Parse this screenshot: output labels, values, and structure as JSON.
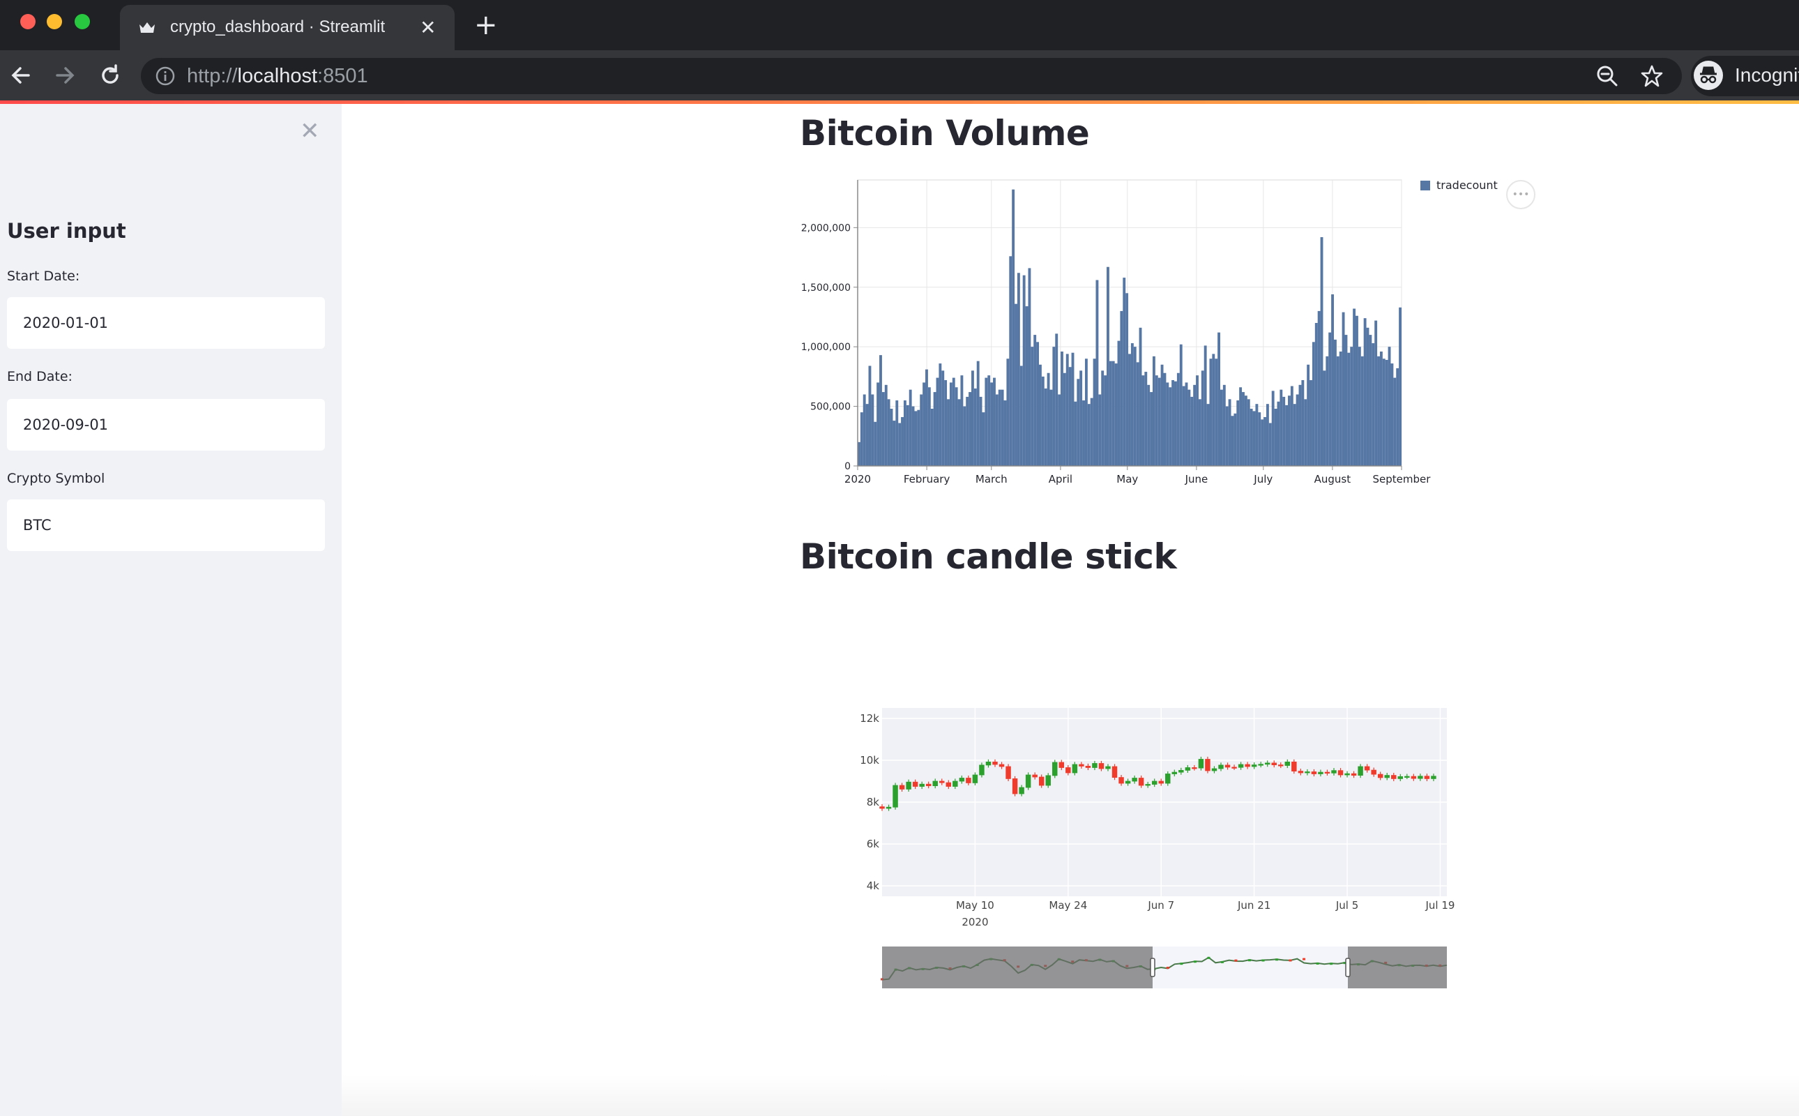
{
  "browser": {
    "tab_title": "crypto_dashboard · Streamlit",
    "url_scheme": "http://",
    "url_host": "localhost",
    "url_port": ":8501",
    "profile_label": "Incognito"
  },
  "sidebar": {
    "heading": "User input",
    "fields": [
      {
        "label": "Start Date:",
        "value": "2020-01-01"
      },
      {
        "label": "End Date:",
        "value": "2020-09-01"
      },
      {
        "label": "Crypto Symbol",
        "value": "BTC"
      }
    ]
  },
  "main": {
    "volume_title": "Bitcoin Volume",
    "candle_title": "Bitcoin candle stick"
  },
  "colors": {
    "bar": "#5677a4",
    "up": "#2ca02c",
    "down": "#ef3b2c",
    "accent": "#ff4b4b"
  },
  "chart_data": [
    {
      "type": "bar",
      "series_name": "tradecount",
      "x_tick_labels": [
        "2020",
        "February",
        "March",
        "April",
        "May",
        "June",
        "July",
        "August",
        "September"
      ],
      "y_tick_labels": [
        "0",
        "500,000",
        "1,000,000",
        "1,500,000",
        "2,000,000"
      ],
      "ylim": [
        0,
        2400000
      ],
      "x_range": [
        "2020-01-01",
        "2020-09-01"
      ],
      "values": [
        200000,
        450000,
        600000,
        520000,
        840000,
        600000,
        370000,
        700000,
        930000,
        620000,
        680000,
        560000,
        480000,
        380000,
        550000,
        360000,
        410000,
        550000,
        510000,
        640000,
        500000,
        460000,
        470000,
        600000,
        700000,
        810000,
        660000,
        480000,
        620000,
        740000,
        860000,
        800000,
        720000,
        560000,
        700000,
        740000,
        660000,
        560000,
        760000,
        500000,
        580000,
        620000,
        800000,
        650000,
        880000,
        580000,
        450000,
        740000,
        760000,
        700000,
        740000,
        600000,
        640000,
        640000,
        550000,
        900000,
        1760000,
        2320000,
        1360000,
        1620000,
        840000,
        1600000,
        1340000,
        1660000,
        1000000,
        1100000,
        1040000,
        850000,
        750000,
        650000,
        780000,
        640000,
        1000000,
        1110000,
        600000,
        960000,
        780000,
        940000,
        830000,
        950000,
        540000,
        730000,
        800000,
        550000,
        900000,
        520000,
        570000,
        900000,
        1560000,
        600000,
        800000,
        760000,
        1670000,
        880000,
        880000,
        860000,
        1050000,
        1300000,
        1580000,
        1450000,
        940000,
        1030000,
        1000000,
        870000,
        1160000,
        760000,
        790000,
        680000,
        620000,
        920000,
        760000,
        740000,
        850000,
        780000,
        700000,
        660000,
        720000,
        710000,
        780000,
        1020000,
        670000,
        700000,
        640000,
        580000,
        680000,
        760000,
        560000,
        800000,
        1010000,
        520000,
        900000,
        940000,
        900000,
        1120000,
        640000,
        680000,
        500000,
        560000,
        420000,
        440000,
        550000,
        660000,
        620000,
        590000,
        560000,
        480000,
        460000,
        520000,
        450000,
        390000,
        410000,
        520000,
        360000,
        630000,
        480000,
        540000,
        640000,
        580000,
        510000,
        590000,
        670000,
        520000,
        600000,
        680000,
        720000,
        560000,
        850000,
        720000,
        1040000,
        1200000,
        1300000,
        1920000,
        800000,
        920000,
        1120000,
        1440000,
        1060000,
        920000,
        960000,
        1290000,
        1100000,
        950000,
        1000000,
        1320000,
        1260000,
        1000000,
        920000,
        1240000,
        1160000,
        1100000,
        1030000,
        1220000,
        920000,
        960000,
        900000,
        890000,
        1000000,
        860000,
        740000,
        820000,
        1330000
      ],
      "legend_position": "top-right",
      "grid": true
    },
    {
      "type": "candlestick",
      "y_tick_labels": [
        "4k",
        "6k",
        "8k",
        "10k",
        "12k"
      ],
      "ylim": [
        3500,
        12500
      ],
      "x_tick_labels": [
        "May 10",
        "May 24",
        "Jun 7",
        "Jun 21",
        "Jul 5",
        "Jul 19"
      ],
      "x_tick_sublabel": "2020",
      "x_range": [
        "2020-04-26",
        "2020-07-20"
      ],
      "start": "2020-04-26",
      "candles": [
        [
          7780,
          7700
        ],
        [
          7700,
          7760
        ],
        [
          7760,
          8800
        ],
        [
          8800,
          8620
        ],
        [
          8620,
          8960
        ],
        [
          8960,
          8750
        ],
        [
          8750,
          8860
        ],
        [
          8860,
          8780
        ],
        [
          8780,
          9000
        ],
        [
          9000,
          8930
        ],
        [
          8930,
          8750
        ],
        [
          8750,
          9000
        ],
        [
          9000,
          9150
        ],
        [
          9150,
          8920
        ],
        [
          8920,
          9300
        ],
        [
          9300,
          9770
        ],
        [
          9770,
          9920
        ],
        [
          9920,
          9800
        ],
        [
          9800,
          9700
        ],
        [
          9700,
          9120
        ],
        [
          9120,
          8400
        ],
        [
          8400,
          8700
        ],
        [
          8700,
          9300
        ],
        [
          9300,
          9200
        ],
        [
          9200,
          8800
        ],
        [
          8800,
          9270
        ],
        [
          9270,
          9900
        ],
        [
          9900,
          9650
        ],
        [
          9650,
          9400
        ],
        [
          9400,
          9800
        ],
        [
          9800,
          9720
        ],
        [
          9720,
          9650
        ],
        [
          9650,
          9850
        ],
        [
          9850,
          9600
        ],
        [
          9600,
          9700
        ],
        [
          9700,
          9180
        ],
        [
          9180,
          8900
        ],
        [
          8900,
          9000
        ],
        [
          9000,
          9150
        ],
        [
          9150,
          8800
        ],
        [
          8800,
          8850
        ],
        [
          8850,
          9000
        ],
        [
          9000,
          8900
        ],
        [
          8900,
          9350
        ],
        [
          9350,
          9430
        ],
        [
          9430,
          9520
        ],
        [
          9520,
          9650
        ],
        [
          9650,
          9630
        ],
        [
          9630,
          10050
        ],
        [
          10050,
          9500
        ],
        [
          9500,
          9600
        ],
        [
          9600,
          9770
        ],
        [
          9770,
          9670
        ],
        [
          9670,
          9660
        ],
        [
          9660,
          9800
        ],
        [
          9800,
          9700
        ],
        [
          9700,
          9780
        ],
        [
          9780,
          9810
        ],
        [
          9810,
          9870
        ],
        [
          9870,
          9780
        ],
        [
          9780,
          9750
        ],
        [
          9750,
          9920
        ],
        [
          9920,
          9480
        ],
        [
          9480,
          9400
        ],
        [
          9400,
          9450
        ],
        [
          9450,
          9350
        ],
        [
          9350,
          9430
        ],
        [
          9430,
          9390
        ],
        [
          9390,
          9510
        ],
        [
          9510,
          9300
        ],
        [
          9300,
          9360
        ],
        [
          9360,
          9280
        ],
        [
          9280,
          9700
        ],
        [
          9700,
          9530
        ],
        [
          9530,
          9330
        ],
        [
          9330,
          9170
        ],
        [
          9170,
          9280
        ],
        [
          9280,
          9120
        ],
        [
          9120,
          9220
        ],
        [
          9220,
          9230
        ],
        [
          9230,
          9130
        ],
        [
          9130,
          9240
        ],
        [
          9240,
          9120
        ],
        [
          9120,
          9240
        ]
      ]
    }
  ]
}
